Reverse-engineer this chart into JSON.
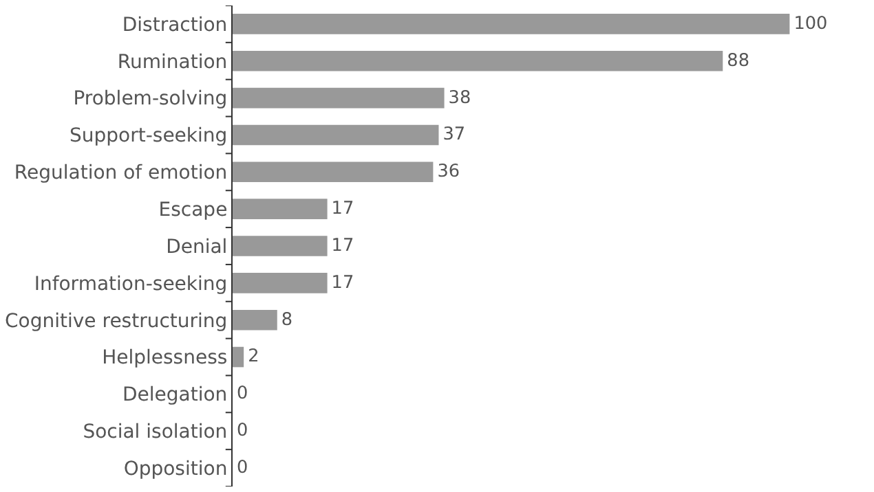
{
  "chart_data": {
    "type": "bar",
    "orientation": "horizontal",
    "categories": [
      "Distraction",
      "Rumination",
      "Problem-solving",
      "Support-seeking",
      "Regulation of emotion",
      "Escape",
      "Denial",
      "Information-seeking",
      "Cognitive restructuring",
      "Helplessness",
      "Delegation",
      "Social isolation",
      "Opposition"
    ],
    "values": [
      100,
      88,
      38,
      37,
      36,
      17,
      17,
      17,
      8,
      2,
      0,
      0,
      0
    ],
    "color": "#999999",
    "data_labels": true,
    "grid": false,
    "legend": false
  }
}
